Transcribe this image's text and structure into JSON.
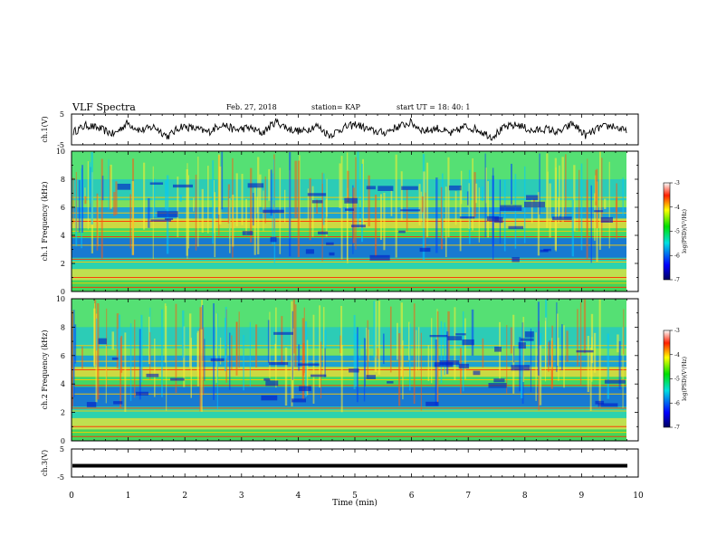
{
  "header": {
    "title": "VLF Spectra",
    "date": "Feb. 27, 2018",
    "station": "station= KAP",
    "start": "start  UT =   18: 40: 1"
  },
  "chart_data": [
    {
      "type": "line",
      "title": "",
      "ylabel": "ch.1(V)",
      "ylim": [
        -5,
        5
      ],
      "yticks": [
        "5",
        "-5"
      ],
      "xlim": [
        0,
        10
      ],
      "series": [
        {
          "values": [
            -0.8,
            1.4,
            0.2,
            -1.6,
            2.1,
            -0.4,
            0.9,
            -2.3,
            1.1,
            0.3,
            -0.9,
            1.8,
            -0.2,
            0.6,
            -1.2,
            2.6,
            0.1,
            -0.7,
            1.3,
            -1.9,
            0.5,
            1.7,
            -0.3,
            -1.1,
            0.8,
            2.2,
            -0.5,
            0.4,
            -1.5,
            1.0,
            -0.1,
            -2.4,
            0.7,
            1.5,
            -0.6,
            0.2,
            -1.0,
            1.9,
            -2.0,
            0.6,
            1.2,
            -0.8
          ]
        }
      ]
    },
    {
      "type": "heatmap",
      "ylabel": "ch.1 Frequency (kHz)",
      "ylim": [
        0,
        10
      ],
      "yticks": [
        "0",
        "2",
        "4",
        "6",
        "8",
        "10"
      ],
      "xlim": [
        0,
        10
      ],
      "colorbar": {
        "label": "log(PSD)(V²/Hz)",
        "range": [
          -7,
          -3
        ],
        "ticks": [
          "-3",
          "-4",
          "-5",
          "-6",
          "-7"
        ]
      }
    },
    {
      "type": "heatmap",
      "ylabel": "ch.2 Frequency (kHz)",
      "ylim": [
        0,
        10
      ],
      "yticks": [
        "0",
        "2",
        "4",
        "6",
        "8",
        "10"
      ],
      "xlim": [
        0,
        10
      ],
      "colorbar": {
        "label": "log(PSD)(V²/Hz)",
        "range": [
          -7,
          -3
        ],
        "ticks": [
          "-3",
          "-4",
          "-5",
          "-6",
          "-7"
        ]
      }
    },
    {
      "type": "line",
      "ylabel": "ch.3(V)",
      "ylim": [
        -5,
        5
      ],
      "yticks": [
        "5",
        "-5"
      ],
      "xlim": [
        0,
        10
      ],
      "series": [
        {
          "values": [
            0,
            0,
            0,
            0,
            0,
            0,
            0,
            0,
            0,
            0,
            0
          ]
        }
      ]
    }
  ],
  "xaxis": {
    "label": "Time  (min)",
    "ticks": [
      "0",
      "1",
      "2",
      "3",
      "4",
      "5",
      "6",
      "7",
      "8",
      "9",
      "10"
    ]
  }
}
